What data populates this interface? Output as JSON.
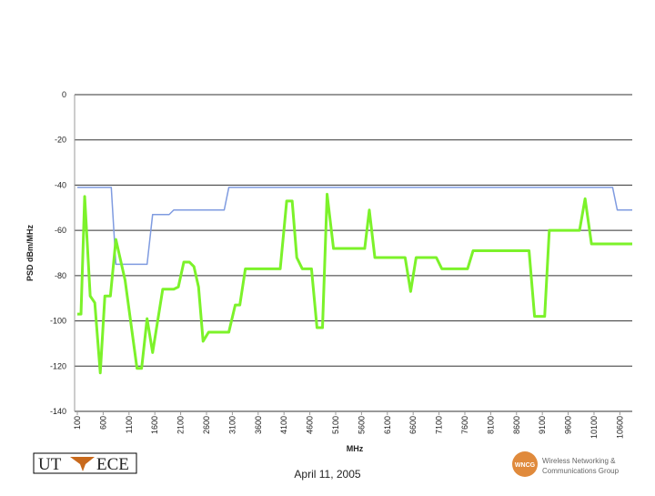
{
  "chart_data": {
    "type": "line",
    "x_label": "MHz",
    "y_label": "PSD dBm/MHz",
    "xlim": [
      100,
      10840
    ],
    "ylim": [
      -140,
      0
    ],
    "xticks": [
      100,
      600,
      1100,
      1600,
      2100,
      2600,
      3100,
      3600,
      4100,
      4600,
      5100,
      5600,
      6100,
      6600,
      7100,
      7600,
      8100,
      8600,
      9100,
      9600,
      10100,
      10600
    ],
    "yticks": [
      -140,
      -120,
      -100,
      -80,
      -60,
      -40,
      -20,
      0
    ],
    "grid": true,
    "series": [
      {
        "color": "#7f9be0",
        "x": [
          100,
          757,
          846,
          1450,
          1557,
          1877,
          1966,
          2943,
          3032,
          10460,
          10550,
          10840
        ],
        "values": [
          -41,
          -41,
          -75,
          -75,
          -53,
          -53,
          -51,
          -51,
          -41,
          -41,
          -51,
          -51
        ]
      },
      {
        "color": "#7cf22a",
        "x": [
          100,
          171,
          242,
          349,
          438,
          544,
          633,
          740,
          846,
          1024,
          1255,
          1344,
          1450,
          1557,
          1753,
          1966,
          2055,
          2161,
          2268,
          2357,
          2446,
          2534,
          2641,
          3032,
          3156,
          3245,
          3352,
          4027,
          4152,
          4258,
          4347,
          4454,
          4632,
          4738,
          4845,
          4934,
          5058,
          5662,
          5751,
          5858,
          6444,
          6551,
          6657,
          7048,
          7155,
          7652,
          7759,
          8843,
          8949,
          9145,
          9234,
          9820,
          9927,
          10051,
          10840
        ],
        "values": [
          -97,
          -97,
          -45,
          -89,
          -92,
          -123,
          -89,
          -89,
          -64,
          -82,
          -121,
          -121,
          -99,
          -114,
          -86,
          -86,
          -85,
          -74,
          -74,
          -76,
          -85,
          -109,
          -105,
          -105,
          -93,
          -93,
          -77,
          -77,
          -47,
          -47,
          -72,
          -77,
          -77,
          -103,
          -103,
          -44,
          -68,
          -68,
          -51,
          -72,
          -72,
          -87,
          -72,
          -72,
          -77,
          -77,
          -69,
          -69,
          -98,
          -98,
          -60,
          -60,
          -46,
          -66,
          -66
        ]
      }
    ]
  },
  "footer": {
    "date": "April 11, 2005",
    "left_logo": [
      "UT",
      "ECE"
    ],
    "right_logo": {
      "mark": "WNCG",
      "lines": [
        "Wireless Networking &",
        "Communications Group"
      ]
    }
  }
}
